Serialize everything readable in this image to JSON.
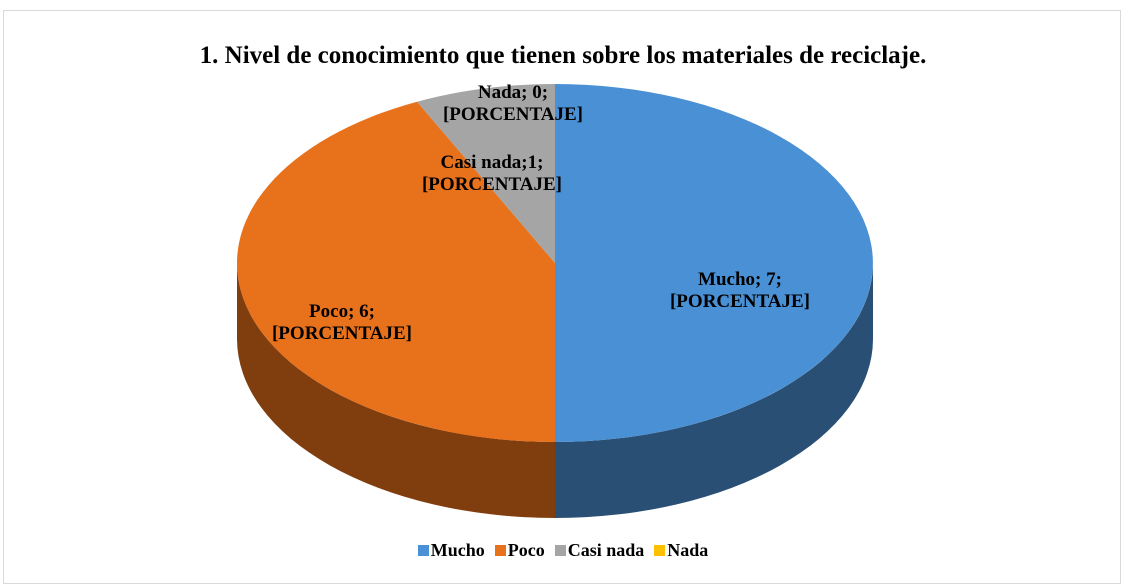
{
  "chart_data": {
    "type": "pie3d",
    "title": "1. Nivel de conocimiento que tienen sobre los materiales de reciclaje.",
    "categories": [
      "Mucho",
      "Poco",
      "Casi nada",
      "Nada"
    ],
    "values": [
      7,
      6,
      1,
      0
    ],
    "value_labels": [
      "Mucho; 7;\n[PORCENTAJE]",
      "Poco; 6;\n[PORCENTAJE]",
      "Casi nada;1;\n[PORCENTAJE]",
      "Nada; 0;\n[PORCENTAJE]"
    ],
    "colors": [
      "#4a90d4",
      "#e8711c",
      "#a5a5a5",
      "#ffc000"
    ],
    "legend": "bottom"
  }
}
